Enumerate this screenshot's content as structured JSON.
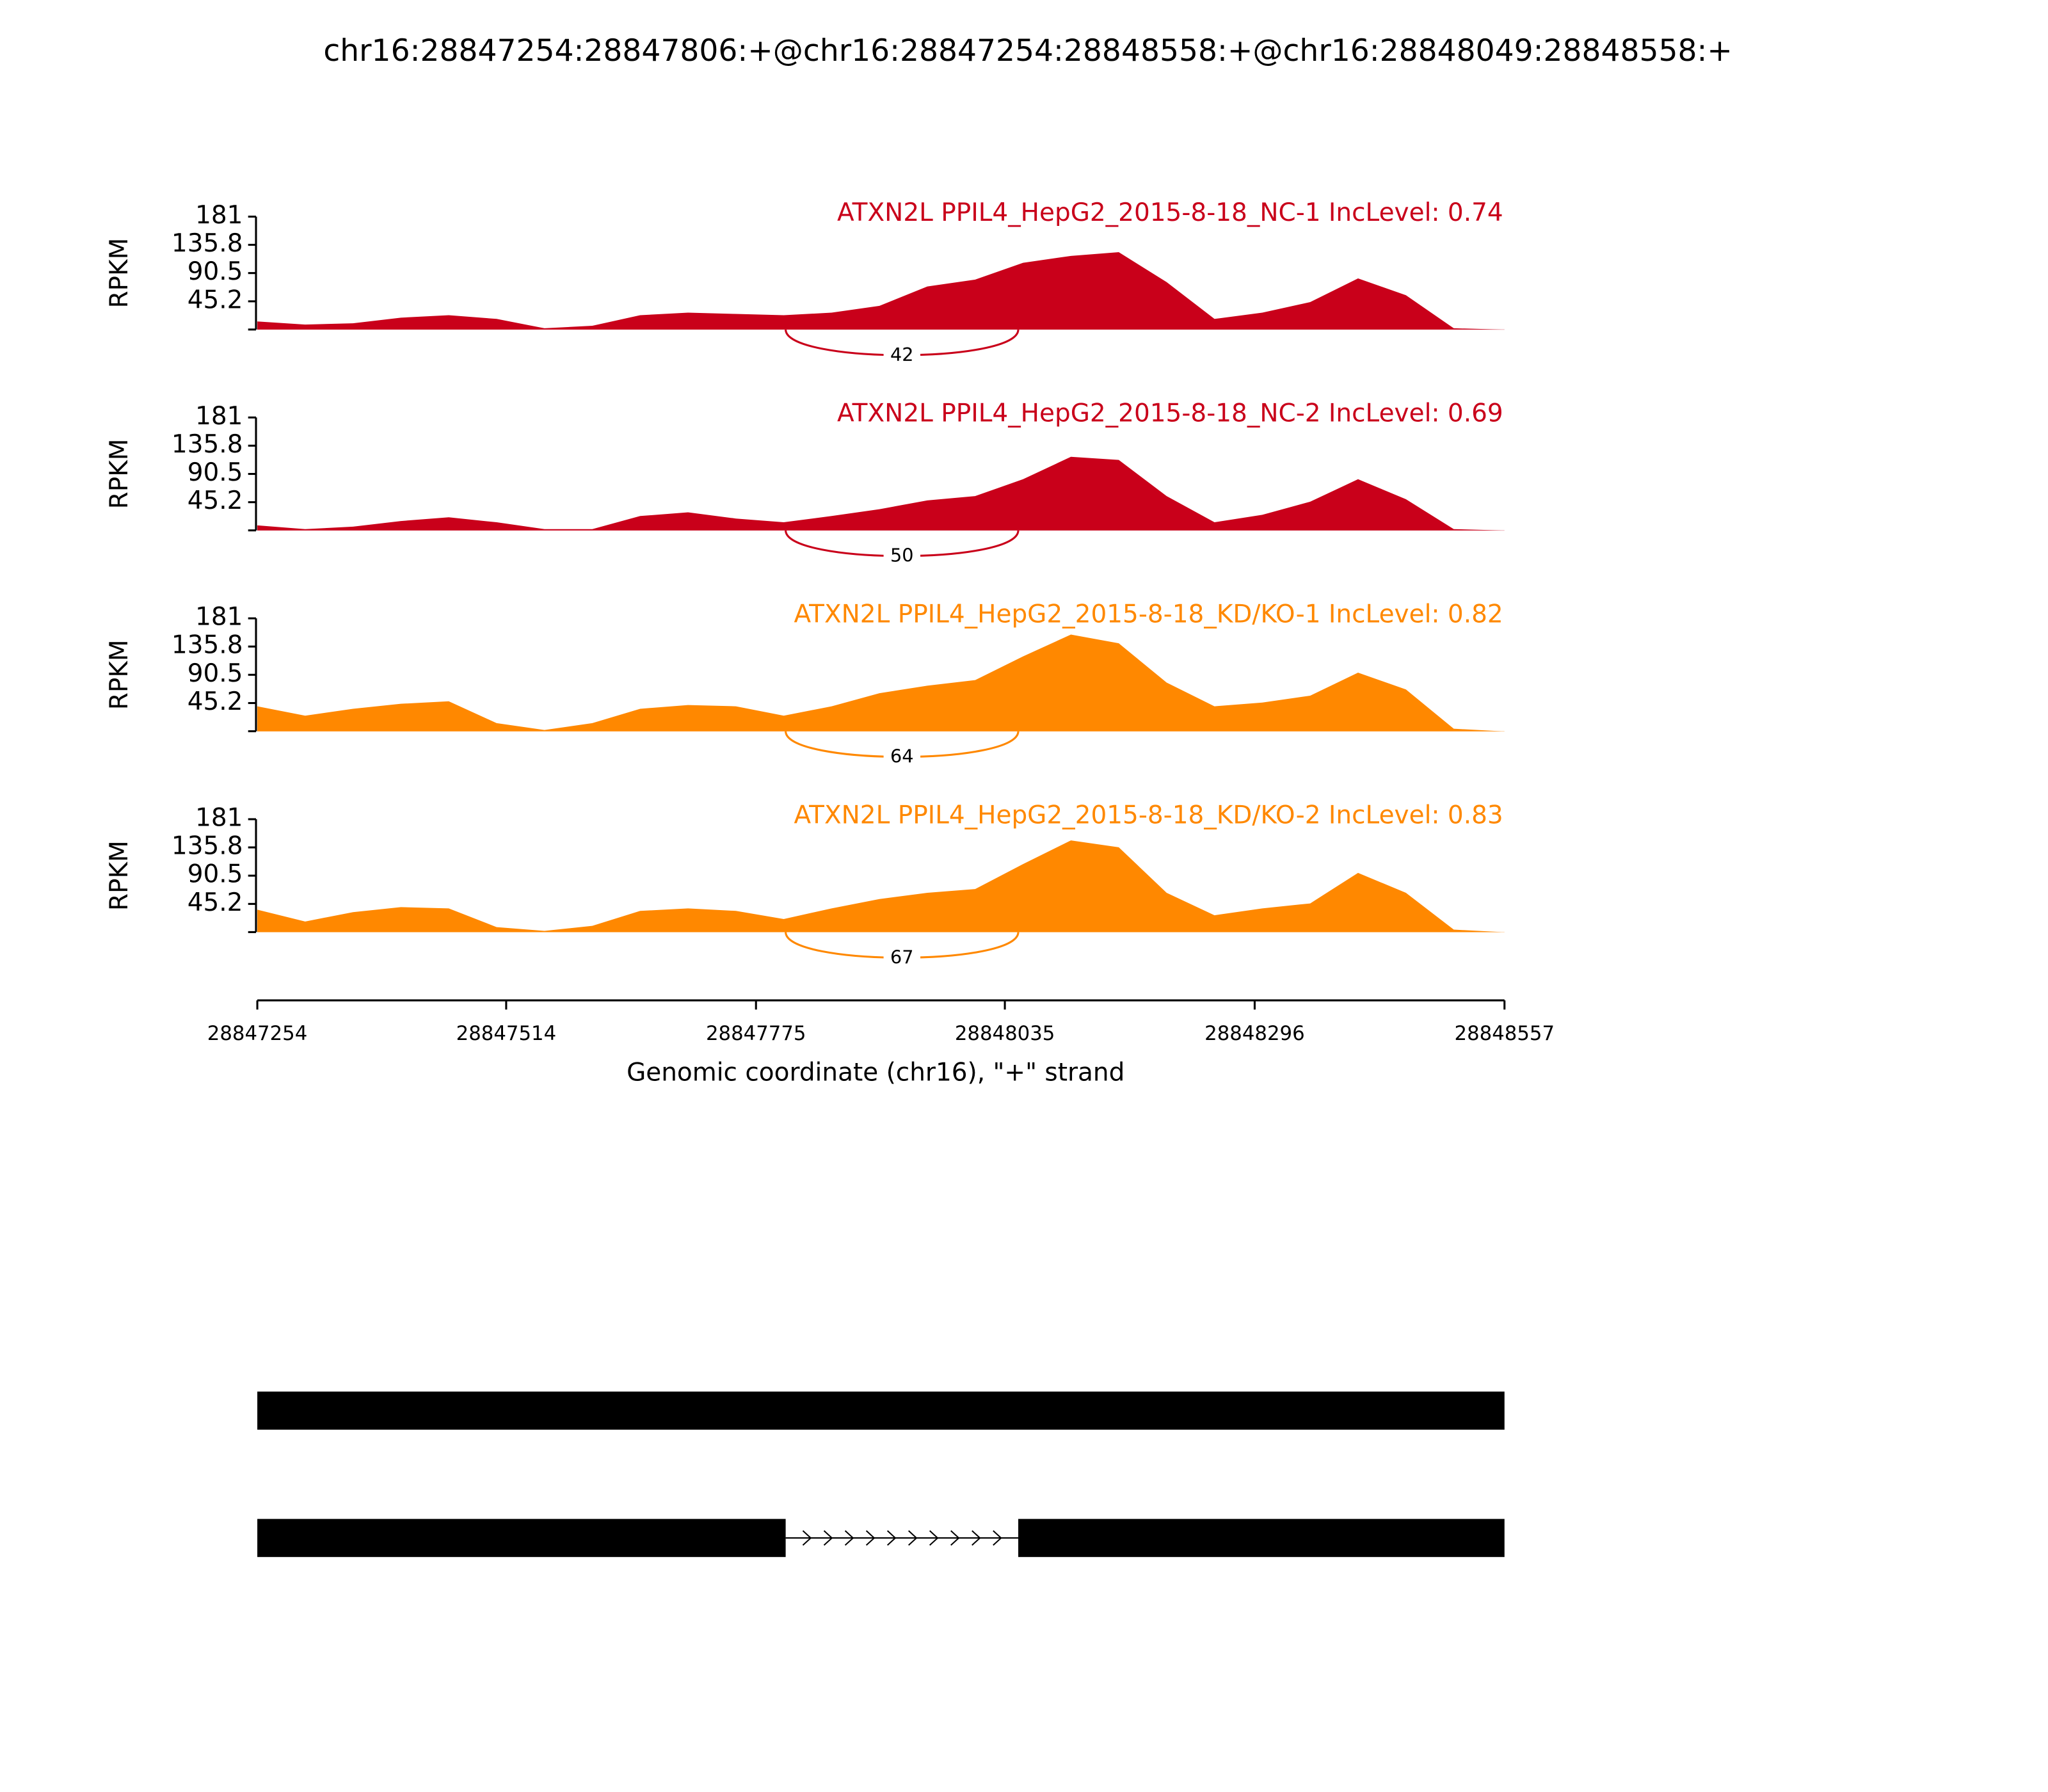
{
  "title": "chr16:28847254:28847806:+@chr16:28847254:28848558:+@chr16:28848049:28848558:+",
  "chart_data": [
    {
      "type": "area",
      "title": "ATXN2L PPIL4_HepG2_2015-8-18_NC-1 IncLevel: 0.74",
      "color": "#c9001a",
      "ylabel": "RPKM",
      "x": [
        28847254,
        28847304,
        28847354,
        28847404,
        28847454,
        28847504,
        28847554,
        28847604,
        28847654,
        28847704,
        28847754,
        28847804,
        28847854,
        28847904,
        28847954,
        28848004,
        28848054,
        28848104,
        28848154,
        28848204,
        28848254,
        28848304,
        28848354,
        28848404,
        28848454,
        28848504,
        28848554
      ],
      "values": [
        13,
        8,
        10,
        19,
        23,
        17,
        2,
        6,
        23,
        27,
        25,
        23,
        27,
        38,
        69,
        80,
        107,
        118,
        124,
        76,
        17,
        27,
        44,
        82,
        55,
        2,
        0
      ],
      "xlim": [
        28847254,
        28848557
      ],
      "ylim": [
        0,
        181
      ],
      "yticks": [
        45.2,
        90.5,
        135.8,
        181
      ],
      "junction": {
        "from": 28847806,
        "to": 28848049,
        "count": 42
      }
    },
    {
      "type": "area",
      "title": "ATXN2L PPIL4_HepG2_2015-8-18_NC-2 IncLevel: 0.69",
      "color": "#c9001a",
      "ylabel": "RPKM",
      "x": [
        28847254,
        28847304,
        28847354,
        28847404,
        28847454,
        28847504,
        28847554,
        28847604,
        28847654,
        28847704,
        28847754,
        28847804,
        28847854,
        28847904,
        28847954,
        28848004,
        28848054,
        28848104,
        28848154,
        28848204,
        28848254,
        28848304,
        28848354,
        28848404,
        28848454,
        28848504,
        28848554
      ],
      "values": [
        8,
        2,
        6,
        15,
        21,
        13,
        2,
        2,
        23,
        29,
        19,
        13,
        23,
        34,
        48,
        55,
        82,
        118,
        113,
        55,
        13,
        25,
        46,
        82,
        50,
        2,
        0
      ],
      "xlim": [
        28847254,
        28848557
      ],
      "ylim": [
        0,
        181
      ],
      "yticks": [
        45.2,
        90.5,
        135.8,
        181
      ],
      "junction": {
        "from": 28847806,
        "to": 28848049,
        "count": 50
      }
    },
    {
      "type": "area",
      "title": "ATXN2L PPIL4_HepG2_2015-8-18_KD/KO-1 IncLevel: 0.82",
      "color": "#ff8800",
      "ylabel": "RPKM",
      "x": [
        28847254,
        28847304,
        28847354,
        28847404,
        28847454,
        28847504,
        28847554,
        28847604,
        28847654,
        28847704,
        28847754,
        28847804,
        28847854,
        28847904,
        28847954,
        28848004,
        28848054,
        28848104,
        28848154,
        28848204,
        28848254,
        28848304,
        28848354,
        28848404,
        28848454,
        28848504,
        28848554
      ],
      "values": [
        40,
        25,
        36,
        44,
        48,
        13,
        2,
        13,
        36,
        42,
        40,
        25,
        40,
        61,
        73,
        82,
        120,
        155,
        141,
        78,
        40,
        46,
        57,
        94,
        67,
        4,
        0
      ],
      "xlim": [
        28847254,
        28848557
      ],
      "ylim": [
        0,
        181
      ],
      "yticks": [
        45.2,
        90.5,
        135.8,
        181
      ],
      "junction": {
        "from": 28847806,
        "to": 28848049,
        "count": 64
      }
    },
    {
      "type": "area",
      "title": "ATXN2L PPIL4_HepG2_2015-8-18_KD/KO-2 IncLevel: 0.83",
      "color": "#ff8800",
      "ylabel": "RPKM",
      "x": [
        28847254,
        28847304,
        28847354,
        28847404,
        28847454,
        28847504,
        28847554,
        28847604,
        28847654,
        28847704,
        28847754,
        28847804,
        28847854,
        28847904,
        28847954,
        28848004,
        28848054,
        28848104,
        28848154,
        28848204,
        28848254,
        28848304,
        28848354,
        28848404,
        28848454,
        28848504,
        28848554
      ],
      "values": [
        36,
        17,
        32,
        40,
        38,
        8,
        2,
        10,
        34,
        38,
        34,
        21,
        38,
        53,
        63,
        69,
        109,
        147,
        136,
        63,
        27,
        38,
        46,
        95,
        63,
        4,
        0
      ],
      "xlim": [
        28847254,
        28848557
      ],
      "ylim": [
        0,
        181
      ],
      "yticks": [
        45.2,
        90.5,
        135.8,
        181
      ],
      "junction": {
        "from": 28847806,
        "to": 28848049,
        "count": 67
      },
      "xticks": [
        28847254,
        28847514,
        28847775,
        28848035,
        28848296,
        28848557
      ],
      "xlabel": "Genomic coordinate (chr16), \"+\" strand"
    }
  ]
}
